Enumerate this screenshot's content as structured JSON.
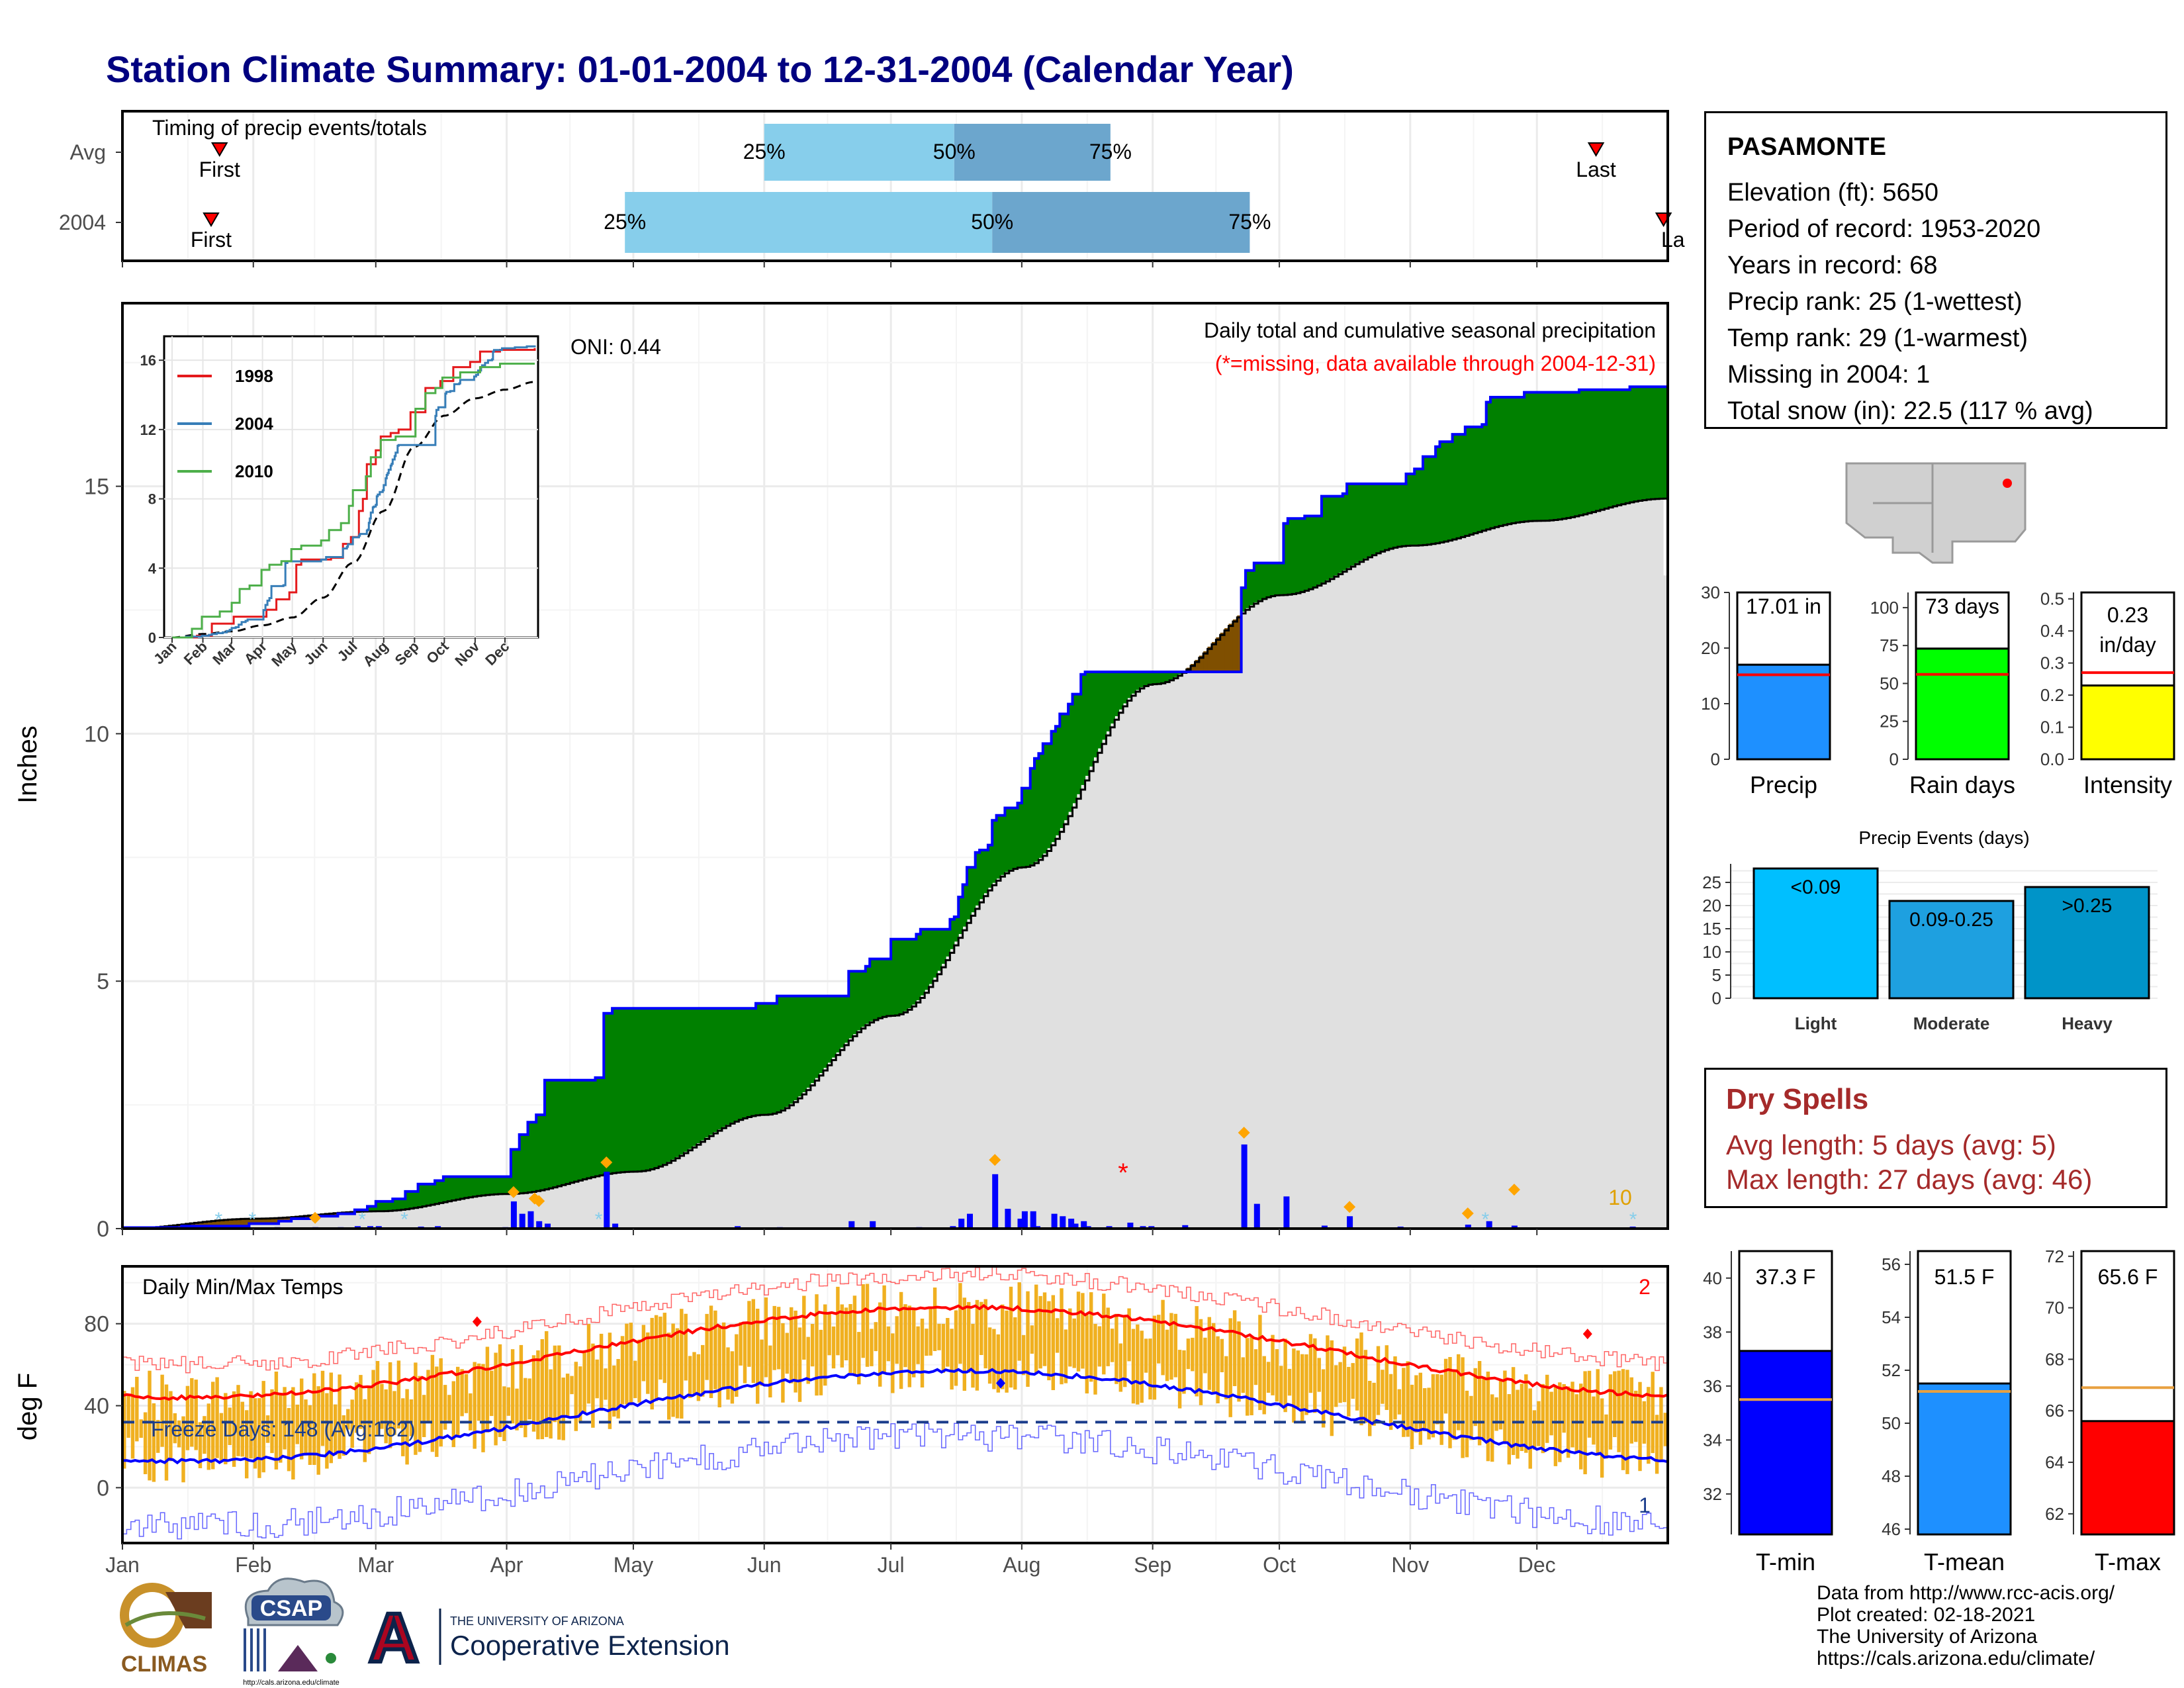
{
  "title": "Station Climate Summary: 01-01-2004 to 12-31-2004 (Calendar Year)",
  "timing_panel": {
    "label": "Timing of precip events/totals",
    "rows": [
      {
        "name": "Avg",
        "first_label": "First",
        "last_label": "Last",
        "first_date": "2004-01-24",
        "last_date": "2004-12-15",
        "p25_date": "2004-06-01",
        "p50_date": "2004-07-16",
        "p75_date": "2004-08-22",
        "p25_label": "25%",
        "p50_label": "50%",
        "p75_label": "75%"
      },
      {
        "name": "2004",
        "first_label": "First",
        "last_label": "La",
        "first_date": "2004-01-22",
        "last_date": "2004-12-31",
        "p25_date": "2004-04-29",
        "p50_date": "2004-07-25",
        "p75_date": "2004-09-24",
        "p25_label": "25%",
        "p50_label": "50%",
        "p75_label": "75%"
      }
    ]
  },
  "precip_panel": {
    "ylabel": "Inches",
    "yticks": [
      0,
      5,
      10,
      15
    ],
    "ylim": [
      0,
      18.7
    ],
    "oni_label": "ONI: 0.44",
    "note1": "Daily total and cumulative seasonal precipitation",
    "note2": "(*=missing, data available through 2004-12-31)",
    "corner_label": "10",
    "colors": {
      "above": "#008000",
      "below": "#7f4f00",
      "observed_line": "#0000ff",
      "normal_fill": "#e0e0e0",
      "bars": "#0000ff",
      "marker": "#ffa500",
      "missing": "#ff0000"
    }
  },
  "inset": {
    "yticks": [
      0,
      4,
      8,
      12,
      16
    ],
    "months": [
      "Jan",
      "Feb",
      "Mar",
      "Apr",
      "May",
      "Jun",
      "Jul",
      "Aug",
      "Sep",
      "Oct",
      "Nov",
      "Dec"
    ],
    "legend": [
      {
        "year": "1998",
        "color": "#e41a1c"
      },
      {
        "year": "2004",
        "color": "#377eb8"
      },
      {
        "year": "2010",
        "color": "#4daf4a"
      }
    ]
  },
  "temp_panel": {
    "ylabel": "deg F",
    "label": "Daily Min/Max Temps",
    "freeze_label": "Freeze Days: 148 (Avg:162)",
    "max_count": "2",
    "min_count": "1",
    "yticks": [
      0,
      40,
      80
    ],
    "ylim": [
      -27,
      108
    ],
    "freeze_line": 32,
    "colors": {
      "bars": "#f0b020",
      "avg_max": "#ff0000",
      "avg_min": "#0000ff",
      "record_max": "#ff6666",
      "record_min": "#6666ff"
    }
  },
  "x_months": [
    "Jan",
    "Feb",
    "Mar",
    "Apr",
    "May",
    "Jun",
    "Jul",
    "Aug",
    "Sep",
    "Oct",
    "Nov",
    "Dec"
  ],
  "station": {
    "name": "PASAMONTE",
    "lines": [
      "Elevation (ft): 5650",
      "Period of record: 1953-2020",
      "Years in record: 68",
      "Precip rank: 25 (1-wettest)",
      "Temp rank: 29 (1-warmest)",
      "Missing in 2004: 1",
      "Total snow (in): 22.5 (117 % avg)"
    ]
  },
  "summary_bars": [
    {
      "name": "Precip",
      "label": "17.01 in",
      "value": 17.01,
      "avg": 15.2,
      "ylim": [
        0,
        30
      ],
      "yticks": [
        "0",
        "10",
        "20",
        "30"
      ],
      "color": "#1e90ff"
    },
    {
      "name": "Rain days",
      "label": "73 days",
      "value": 73,
      "avg": 56,
      "ylim": [
        0,
        110
      ],
      "yticks": [
        "0",
        "25",
        "50",
        "75",
        "100"
      ],
      "color": "#00ff00"
    },
    {
      "name": "Intensity",
      "label": "0.23 in/day",
      "label_top": "0.23",
      "label_bottom": "in/day",
      "value": 0.23,
      "avg": 0.27,
      "ylim": [
        0,
        0.52
      ],
      "yticks": [
        "0.0",
        "0.1",
        "0.2",
        "0.3",
        "0.4",
        "0.5"
      ],
      "color": "#ffff00"
    }
  ],
  "precip_events": {
    "title": "Precip Events (days)",
    "yticks": [
      "0",
      "5",
      "10",
      "15",
      "20",
      "25"
    ],
    "bars": [
      {
        "category": "Light",
        "label": "<0.09",
        "value": 28,
        "color": "#00bfff"
      },
      {
        "category": "Moderate",
        "label": "0.09-0.25",
        "value": 21,
        "color": "#1ea0e0"
      },
      {
        "category": "Heavy",
        "label": ">0.25",
        "value": 24,
        "color": "#0094c8"
      }
    ]
  },
  "dry_spells": {
    "title": "Dry Spells",
    "avg": "Avg length: 5 days (avg: 5)",
    "max": "Max length: 27 days (avg: 46)"
  },
  "temp_bars": [
    {
      "name": "T-min",
      "label": "37.3 F",
      "value": 37.3,
      "avg": 35.5,
      "ylim": [
        30.5,
        41
      ],
      "yticks": [
        "32",
        "34",
        "36",
        "38",
        "40"
      ],
      "color": "#0000ff"
    },
    {
      "name": "T-mean",
      "label": "51.5 F",
      "value": 51.5,
      "avg": 51.2,
      "ylim": [
        45.8,
        56.5
      ],
      "yticks": [
        "46",
        "48",
        "50",
        "52",
        "54",
        "56"
      ],
      "color": "#1e90ff"
    },
    {
      "name": "T-max",
      "label": "65.6 F",
      "value": 65.6,
      "avg": 66.9,
      "ylim": [
        61.2,
        72.2
      ],
      "yticks": [
        "62",
        "64",
        "66",
        "68",
        "70",
        "72"
      ],
      "color": "#ff0000"
    }
  ],
  "logos": {
    "climas": "CLIMAS",
    "csap": "CSAP",
    "csap_url": "http://cals.arizona.edu/climate",
    "ua_line1": "THE UNIVERSITY OF ARIZONA",
    "ua_line2": "Cooperative Extension",
    "ua_letter": "A"
  },
  "credits": [
    "Data from http://www.rcc-acis.org/",
    "Plot created: 02-18-2021",
    "The University of Arizona",
    "https://cals.arizona.edu/climate/"
  ]
}
